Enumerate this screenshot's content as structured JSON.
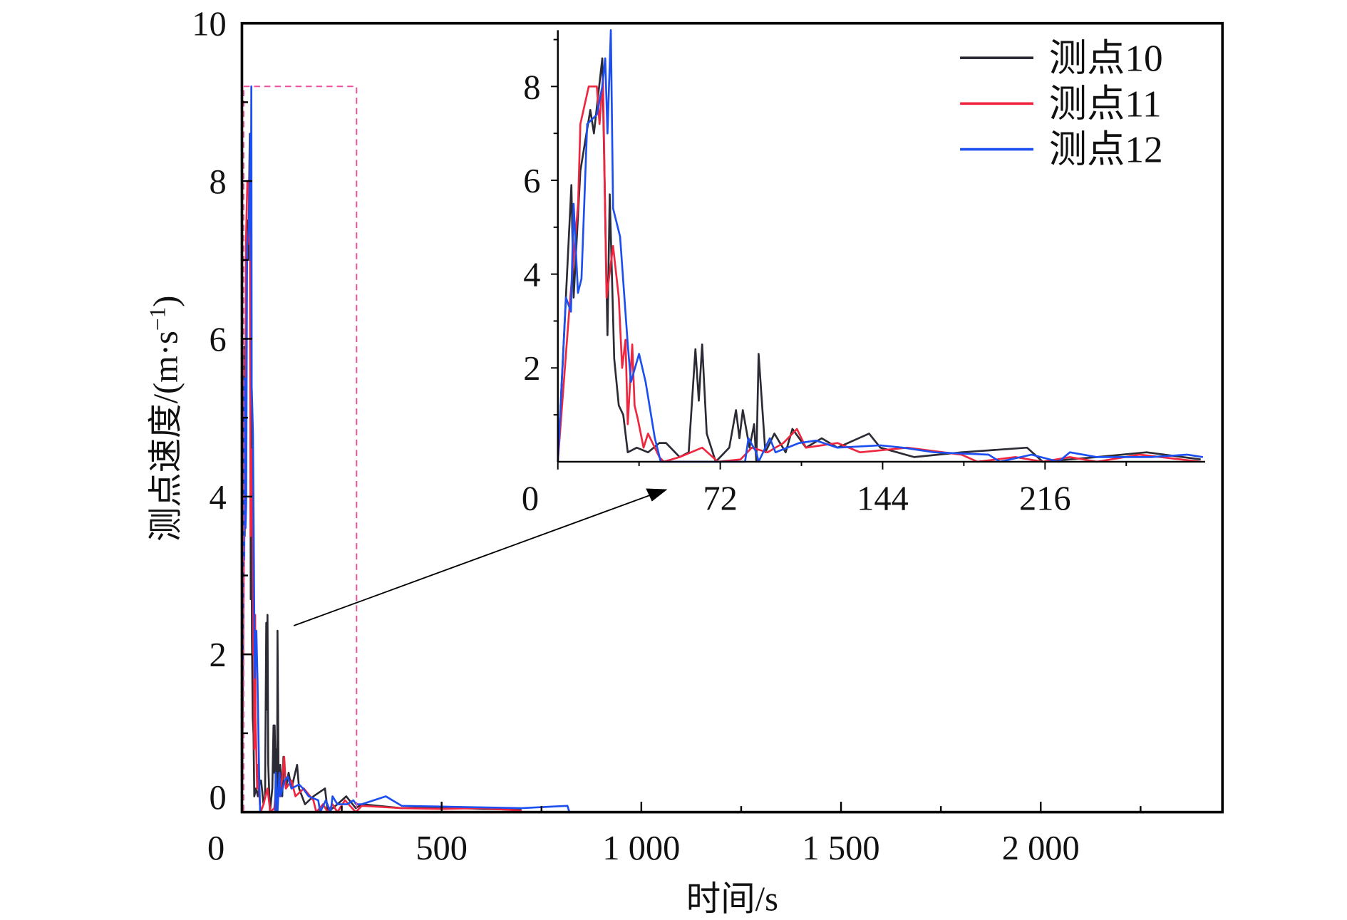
{
  "chart_data": {
    "type": "line",
    "xlabel": "时间/s",
    "ylabel": "测点速度/(m·s",
    "ylabel_sup": "−1",
    "ylabel_close": ")",
    "xlim": [
      0,
      2455
    ],
    "ylim": [
      0,
      10
    ],
    "x_ticks": [
      "0",
      "500",
      "1 000",
      "1 500",
      "2 000"
    ],
    "x_tick_values": [
      0,
      500,
      1000,
      1500,
      2000
    ],
    "y_ticks": [
      "0",
      "2",
      "4",
      "6",
      "8",
      "10"
    ],
    "y_tick_values": [
      0,
      2,
      4,
      6,
      8,
      10
    ],
    "grid": false,
    "legend_position": "top-right",
    "zoom_region": {
      "x": [
        0,
        287
      ],
      "y": [
        0,
        9.2
      ],
      "color": "#ee4e9c"
    },
    "inset": {
      "xlim": [
        0,
        287
      ],
      "ylim": [
        0,
        9.2
      ],
      "x_ticks": [
        "0",
        "72",
        "144",
        "216"
      ],
      "x_tick_values": [
        0,
        72,
        144,
        216
      ],
      "y_ticks": [
        "2",
        "4",
        "6",
        "8"
      ],
      "y_tick_values": [
        2,
        4,
        6,
        8
      ]
    },
    "series": [
      {
        "name": "测点10",
        "color": "#2b2b35",
        "points": [
          [
            0,
            0
          ],
          [
            6,
            5.9
          ],
          [
            7,
            3.5
          ],
          [
            10,
            6.2
          ],
          [
            14.4,
            7.5
          ],
          [
            16,
            7.0
          ],
          [
            19.7,
            8.6
          ],
          [
            22,
            2.7
          ],
          [
            23,
            5.7
          ],
          [
            25,
            2.2
          ],
          [
            27,
            1.2
          ],
          [
            29,
            1.0
          ],
          [
            31,
            0.2
          ],
          [
            35,
            0.3
          ],
          [
            40,
            0.2
          ],
          [
            45,
            0.4
          ],
          [
            48,
            0.4
          ],
          [
            54,
            0.1
          ],
          [
            58,
            0.2
          ],
          [
            61,
            2.4
          ],
          [
            62.5,
            1.3
          ],
          [
            64,
            2.5
          ],
          [
            66,
            0.6
          ],
          [
            70,
            0.0
          ],
          [
            76,
            0.3
          ],
          [
            79,
            1.1
          ],
          [
            80.5,
            0.5
          ],
          [
            82,
            1.1
          ],
          [
            85,
            0.3
          ],
          [
            87,
            0.8
          ],
          [
            88,
            0.0
          ],
          [
            89,
            2.3
          ],
          [
            92,
            0.2
          ],
          [
            96,
            0.6
          ],
          [
            101,
            0.2
          ],
          [
            104,
            0.7
          ],
          [
            110,
            0.3
          ],
          [
            117,
            0.5
          ],
          [
            124,
            0.3
          ],
          [
            138,
            0.6
          ],
          [
            143,
            0.3
          ],
          [
            158,
            0.1
          ],
          [
            179,
            0.2
          ],
          [
            208,
            0.3
          ],
          [
            215,
            0.0
          ],
          [
            239,
            0.1
          ],
          [
            261,
            0.2
          ],
          [
            285,
            0.05
          ],
          [
            300,
            0.1
          ],
          [
            400,
            0.05
          ],
          [
            500,
            0.06
          ],
          [
            600,
            0.04
          ],
          [
            700,
            0.03
          ]
        ]
      },
      {
        "name": "测点11",
        "color": "#f0263f",
        "points": [
          [
            0,
            0
          ],
          [
            5,
            3.2
          ],
          [
            9,
            5.5
          ],
          [
            10,
            7.2
          ],
          [
            13.7,
            8.0
          ],
          [
            17.3,
            8.0
          ],
          [
            18.5,
            7.2
          ],
          [
            20,
            8.2
          ],
          [
            21.6,
            3.5
          ],
          [
            24.5,
            4.6
          ],
          [
            27,
            3.5
          ],
          [
            28.5,
            2.0
          ],
          [
            30,
            2.6
          ],
          [
            31,
            0.8
          ],
          [
            33,
            2.5
          ],
          [
            34,
            1.2
          ],
          [
            35.5,
            0.9
          ],
          [
            38,
            0.3
          ],
          [
            40,
            0.6
          ],
          [
            45,
            0.1
          ],
          [
            47,
            0.0
          ],
          [
            54,
            0.1
          ],
          [
            64,
            0.3
          ],
          [
            71,
            0.0
          ],
          [
            81,
            0.05
          ],
          [
            86,
            0.3
          ],
          [
            93,
            0.2
          ],
          [
            100,
            0.4
          ],
          [
            106,
            0.7
          ],
          [
            110,
            0.3
          ],
          [
            124,
            0.4
          ],
          [
            134,
            0.2
          ],
          [
            155,
            0.3
          ],
          [
            179,
            0.15
          ],
          [
            186,
            0.0
          ],
          [
            203,
            0.1
          ],
          [
            215,
            0.0
          ],
          [
            227,
            0.1
          ],
          [
            239,
            0.0
          ],
          [
            258,
            0.15
          ],
          [
            285,
            0.0
          ],
          [
            300,
            0.08
          ],
          [
            400,
            0.05
          ],
          [
            500,
            0.04
          ],
          [
            600,
            0.05
          ],
          [
            700,
            0.02
          ]
        ]
      },
      {
        "name": "测点12",
        "color": "#1d4ff0",
        "points": [
          [
            0,
            0
          ],
          [
            3.6,
            3.5
          ],
          [
            5.8,
            3.2
          ],
          [
            7,
            5.5
          ],
          [
            8.9,
            3.6
          ],
          [
            10.5,
            3.9
          ],
          [
            13,
            7.2
          ],
          [
            17.3,
            7.4
          ],
          [
            19.7,
            8.0
          ],
          [
            21,
            8.6
          ],
          [
            22,
            7.0
          ],
          [
            23.5,
            9.2
          ],
          [
            24.5,
            5.4
          ],
          [
            27.6,
            4.8
          ],
          [
            31,
            2.5
          ],
          [
            32.4,
            1.7
          ],
          [
            36,
            2.3
          ],
          [
            38.9,
            1.7
          ],
          [
            43,
            0.5
          ],
          [
            45.6,
            0.0
          ],
          [
            83,
            0.0
          ],
          [
            84.5,
            0.5
          ],
          [
            88,
            0.2
          ],
          [
            89,
            0.0
          ],
          [
            94,
            0.5
          ],
          [
            96.5,
            0.2
          ],
          [
            107,
            0.4
          ],
          [
            114.5,
            0.45
          ],
          [
            124,
            0.3
          ],
          [
            143,
            0.35
          ],
          [
            153,
            0.3
          ],
          [
            167,
            0.2
          ],
          [
            191,
            0.15
          ],
          [
            196,
            0.0
          ],
          [
            210,
            0.15
          ],
          [
            222,
            0.0
          ],
          [
            227,
            0.2
          ],
          [
            239,
            0.1
          ],
          [
            263,
            0.1
          ],
          [
            279,
            0.15
          ],
          [
            286,
            0.1
          ],
          [
            300,
            0.1
          ],
          [
            360,
            0.2
          ],
          [
            400,
            0.08
          ],
          [
            500,
            0.07
          ],
          [
            600,
            0.06
          ],
          [
            700,
            0.05
          ],
          [
            815,
            0.08
          ],
          [
            820,
            0.0
          ]
        ]
      }
    ]
  }
}
